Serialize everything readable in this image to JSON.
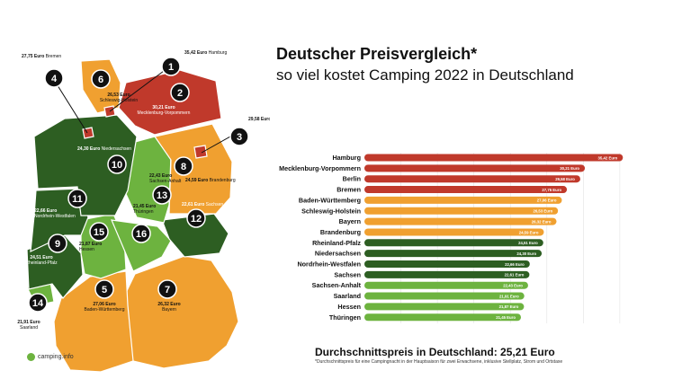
{
  "header": {
    "title": "Deutscher Preisvergleich*",
    "subtitle": "so viel kostet Camping 2022 in Deutschland"
  },
  "footer": {
    "average": "Durchschnittspreis in Deutschland: 25,21 Euro",
    "note": "*Durchschnittspreis für eine Campingnacht in der Hauptsaison für zwei Erwachsene, inklusive Stellplatz, Strom und Ortstaxe",
    "logo": "camping.info"
  },
  "colors": {
    "high": "#c0392b",
    "mid": "#f0a030",
    "lowDark": "#2d5e22",
    "low": "#6db33f"
  },
  "chart_data": {
    "type": "bar",
    "orientation": "horizontal",
    "unit": "Euro",
    "categories": [
      "Hamburg",
      "Mecklenburg-Vorpommern",
      "Berlin",
      "Bremen",
      "Baden-Württemberg",
      "Schleswig-Holstein",
      "Bayern",
      "Brandenburg",
      "Rheinland-Pfalz",
      "Niedersachsen",
      "Nordrhein-Westfalen",
      "Sachsen",
      "Sachsen-Anhalt",
      "Saarland",
      "Hessen",
      "Thüringen"
    ],
    "values": [
      35.42,
      30.21,
      29.58,
      27.75,
      27.06,
      26.53,
      26.32,
      24.59,
      24.51,
      24.3,
      22.66,
      22.61,
      22.43,
      21.91,
      21.87,
      21.45
    ],
    "value_labels": [
      "35,42 Euro",
      "30,21 Euro",
      "29,58 Euro",
      "27,75 Euro",
      "27,06 Euro",
      "26,53 Euro",
      "26,32 Euro",
      "24,59 Euro",
      "24,51 Euro",
      "24,30 Euro",
      "22,66 Euro",
      "22,61 Euro",
      "22,43 Euro",
      "21,91 Euro",
      "21,87 Euro",
      "21,45 Euro"
    ],
    "bar_colors": [
      "#c0392b",
      "#c0392b",
      "#c0392b",
      "#c0392b",
      "#f0a030",
      "#f0a030",
      "#f0a030",
      "#f0a030",
      "#2d5e22",
      "#2d5e22",
      "#2d5e22",
      "#2d5e22",
      "#6db33f",
      "#6db33f",
      "#6db33f",
      "#6db33f"
    ],
    "grid": true,
    "grid_values": [
      5,
      10,
      15,
      20,
      25,
      30,
      35
    ],
    "xlim": [
      0,
      36
    ]
  },
  "map": {
    "regions": [
      {
        "num": "1",
        "label": "35,42 Euro",
        "name": "Hamburg",
        "color": "#c0392b"
      },
      {
        "num": "2",
        "label": "30,21 Euro",
        "name": "Mecklenburg-Vorpommern",
        "color": "#c0392b"
      },
      {
        "num": "3",
        "label": "29,58 Euro",
        "name": "Berlin",
        "color": "#c0392b"
      },
      {
        "num": "4",
        "label": "27,75 Euro",
        "name": "Bremen",
        "color": "#c0392b"
      },
      {
        "num": "5",
        "label": "27,06 Euro",
        "name": "Baden-Württemberg",
        "color": "#f0a030"
      },
      {
        "num": "6",
        "label": "26,53 Euro",
        "name": "Schleswig-Holstein",
        "color": "#f0a030"
      },
      {
        "num": "7",
        "label": "26,32 Euro",
        "name": "Bayern",
        "color": "#f0a030"
      },
      {
        "num": "8",
        "label": "24,59 Euro",
        "name": "Brandenburg",
        "color": "#f0a030"
      },
      {
        "num": "9",
        "label": "24,51 Euro",
        "name": "Rheinland-Pfalz",
        "color": "#2d5e22"
      },
      {
        "num": "10",
        "label": "24,30 Euro",
        "name": "Niedersachsen",
        "color": "#2d5e22"
      },
      {
        "num": "11",
        "label": "22,66 Euro",
        "name": "Nordrhein-Westfalen",
        "color": "#2d5e22"
      },
      {
        "num": "12",
        "label": "22,61 Euro",
        "name": "Sachsen",
        "color": "#2d5e22"
      },
      {
        "num": "13",
        "label": "22,43 Euro",
        "name": "Sachsen-Anhalt",
        "color": "#6db33f"
      },
      {
        "num": "14",
        "label": "21,91 Euro",
        "name": "Saarland",
        "color": "#6db33f"
      },
      {
        "num": "15",
        "label": "21,87 Euro",
        "name": "Hessen",
        "color": "#6db33f"
      },
      {
        "num": "16",
        "label": "21,45 Euro",
        "name": "Thüringen",
        "color": "#6db33f"
      }
    ]
  }
}
